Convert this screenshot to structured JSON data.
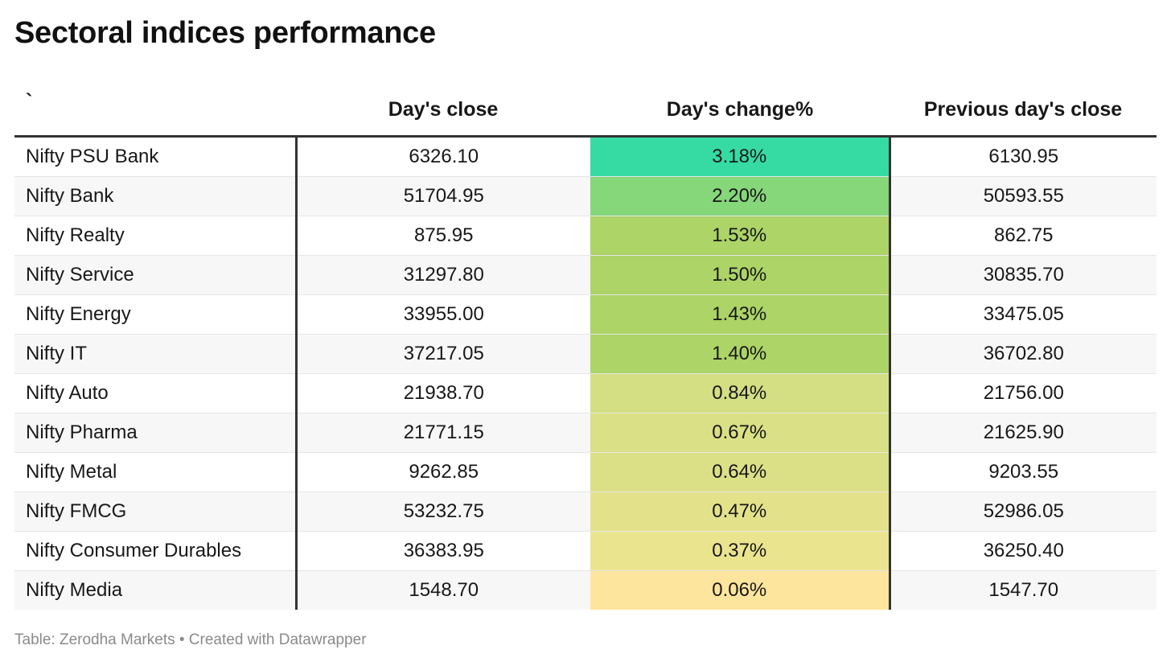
{
  "title": "Sectoral indices performance",
  "footer": "Table: Zerodha Markets • Created with Datawrapper",
  "chart_data": {
    "type": "table",
    "title": "Sectoral indices performance",
    "columns": [
      "`",
      "Day's close",
      "Day's change%",
      "Previous day's close"
    ],
    "rows": [
      {
        "name": "Nifty PSU Bank",
        "close": "6326.10",
        "change": "3.18%",
        "prev_close": "6130.95"
      },
      {
        "name": "Nifty Bank",
        "close": "51704.95",
        "change": "2.20%",
        "prev_close": "50593.55"
      },
      {
        "name": "Nifty Realty",
        "close": "875.95",
        "change": "1.53%",
        "prev_close": "862.75"
      },
      {
        "name": "Nifty Service",
        "close": "31297.80",
        "change": "1.50%",
        "prev_close": "30835.70"
      },
      {
        "name": "Nifty Energy",
        "close": "33955.00",
        "change": "1.43%",
        "prev_close": "33475.05"
      },
      {
        "name": "Nifty IT",
        "close": "37217.05",
        "change": "1.40%",
        "prev_close": "36702.80"
      },
      {
        "name": "Nifty Auto",
        "close": "21938.70",
        "change": "0.84%",
        "prev_close": "21756.00"
      },
      {
        "name": "Nifty Pharma",
        "close": "21771.15",
        "change": "0.67%",
        "prev_close": "21625.90"
      },
      {
        "name": "Nifty Metal",
        "close": "9262.85",
        "change": "0.64%",
        "prev_close": "9203.55"
      },
      {
        "name": "Nifty FMCG",
        "close": "53232.75",
        "change": "0.47%",
        "prev_close": "52986.05"
      },
      {
        "name": "Nifty Consumer Durables",
        "close": "36383.95",
        "change": "0.37%",
        "prev_close": "36250.40"
      },
      {
        "name": "Nifty Media",
        "close": "1548.70",
        "change": "0.06%",
        "prev_close": "1547.70"
      }
    ],
    "change_heatmap_colors": [
      "#36dba4",
      "#86d67a",
      "#acd466",
      "#acd466",
      "#acd466",
      "#acd466",
      "#d3df82",
      "#d9e085",
      "#dbe086",
      "#e3e28b",
      "#ebe48f",
      "#fde59d"
    ]
  }
}
